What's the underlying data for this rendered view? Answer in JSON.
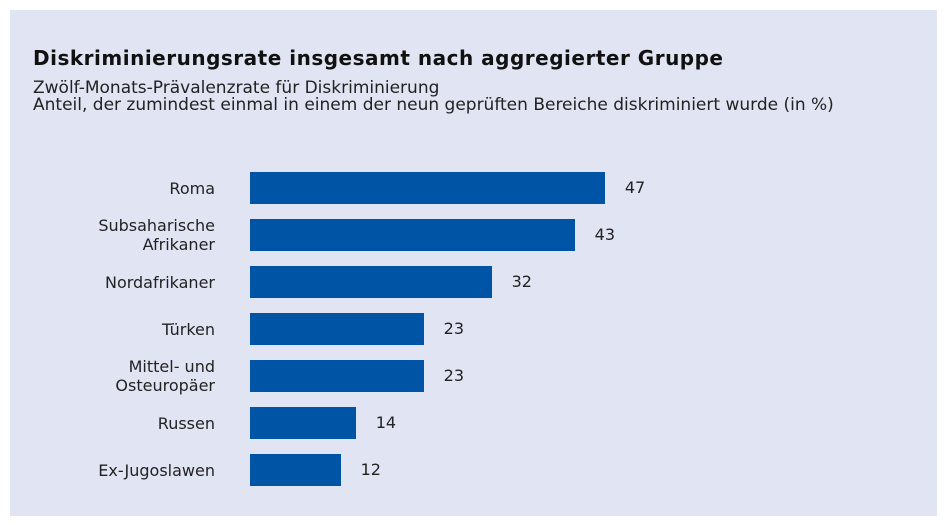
{
  "chart_data": {
    "type": "bar",
    "orientation": "horizontal",
    "title": "Diskriminierungsrate insgesamt nach aggregierter Gruppe",
    "subtitle": "Zwölf-Monats-Prävalenzrate für Diskriminierung",
    "description": "Anteil, der zumindest einmal in einem der neun geprüften Bereiche diskriminiert wurde (in %)",
    "categories": [
      "Roma",
      "Subsaharische\nAfrikaner",
      "Nordafrikaner",
      "Türken",
      "Mittel- und\nOsteuropäer",
      "Russen",
      "Ex-Jugoslawen"
    ],
    "values": [
      47,
      43,
      32,
      23,
      23,
      14,
      12
    ],
    "color": "#0054a6"
  }
}
